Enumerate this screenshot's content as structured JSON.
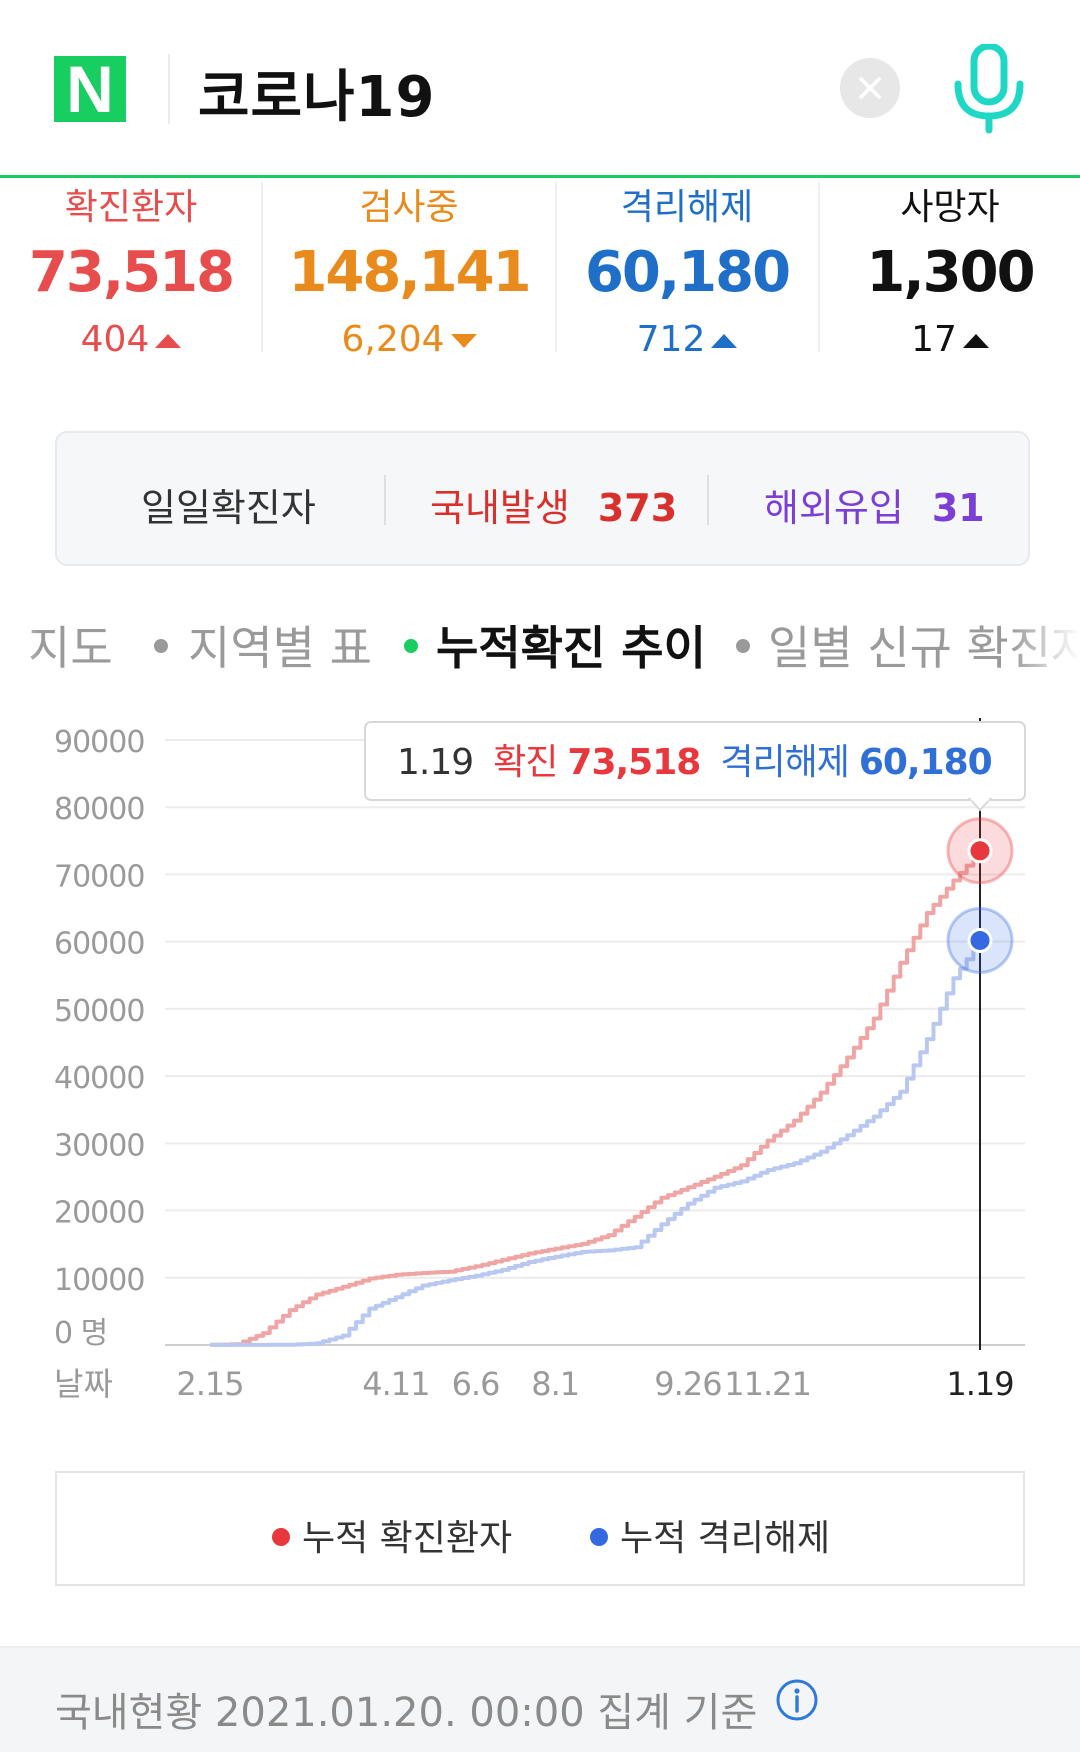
{
  "header": {
    "logo_letter": "N",
    "query": "코로나19",
    "brand_color": "#19ce60"
  },
  "stats": [
    {
      "label": "확진환자",
      "value": "73,518",
      "change": "404",
      "direction": "up",
      "color": "#e84d4d"
    },
    {
      "label": "검사중",
      "value": "148,141",
      "change": "6,204",
      "direction": "down",
      "color": "#e98b1c"
    },
    {
      "label": "격리해제",
      "value": "60,180",
      "change": "712",
      "direction": "up",
      "color": "#1f6fc8"
    },
    {
      "label": "사망자",
      "value": "1,300",
      "change": "17",
      "direction": "up",
      "color": "#111111"
    }
  ],
  "daily": {
    "label": "일일확진자",
    "domestic_label": "국내발생",
    "domestic_value": "373",
    "overseas_label": "해외유입",
    "overseas_value": "31"
  },
  "tabs": [
    {
      "label": "지도",
      "active": false
    },
    {
      "label": "지역별 표",
      "active": false
    },
    {
      "label": "누적확진 추이",
      "active": true
    },
    {
      "label": "일별 신규 확진자",
      "active": false
    }
  ],
  "chart_data": {
    "type": "line",
    "ylim": [
      0,
      90000
    ],
    "y_ticks": [
      "90000",
      "80000",
      "70000",
      "60000",
      "50000",
      "40000",
      "30000",
      "20000",
      "10000",
      "0 명"
    ],
    "y_tick_values": [
      90000,
      80000,
      70000,
      60000,
      50000,
      40000,
      30000,
      20000,
      10000,
      0
    ],
    "x_axis_label": "날짜",
    "x_ticks": [
      "2.15",
      "4.11",
      "6.6",
      "8.1",
      "9.26",
      "11.21",
      "1.19"
    ],
    "x": [
      "2.15",
      "2.20",
      "2.26",
      "3.3",
      "3.10",
      "3.20",
      "4.1",
      "4.11",
      "4.25",
      "5.10",
      "6.6",
      "6.25",
      "7.15",
      "8.1",
      "8.15",
      "8.20",
      "8.27",
      "9.10",
      "9.26",
      "10.15",
      "11.1",
      "11.21",
      "11.28",
      "12.5",
      "12.12",
      "12.19",
      "12.26",
      "1.3",
      "1.10",
      "1.19"
    ],
    "series": [
      {
        "name": "누적 확진환자",
        "color": "#f0a5a5",
        "values": [
          28,
          100,
          1766,
          5186,
          7513,
          8652,
          9887,
          10450,
          10718,
          10909,
          11719,
          12653,
          13612,
          14336,
          15039,
          16346,
          19077,
          21919,
          23455,
          25035,
          26732,
          30403,
          33375,
          37546,
          42766,
          48570,
          56872,
          64264,
          69114,
          73518
        ]
      },
      {
        "name": "누적 격리해제",
        "color": "#b9c8f0",
        "values": [
          16,
          18,
          22,
          34,
          247,
          1401,
          5408,
          7117,
          8854,
          9632,
          10295,
          11172,
          12349,
          13138,
          13855,
          14078,
          14535,
          17964,
          21036,
          23397,
          24337,
          26036,
          27028,
          28759,
          31192,
          33985,
          37678,
          45500,
          54570,
          60180
        ]
      }
    ],
    "tooltip": {
      "date": "1.19",
      "confirmed_label": "확진",
      "confirmed_value": "73,518",
      "released_label": "격리해제",
      "released_value": "60,180"
    },
    "grid": true
  },
  "legend": {
    "confirmed": {
      "label": "누적 확진환자",
      "color": "#e8383d"
    },
    "released": {
      "label": "누적 격리해제",
      "color": "#3469e1"
    }
  },
  "footer": {
    "text": "국내현황 2021.01.20. 00:00 집계 기준"
  }
}
